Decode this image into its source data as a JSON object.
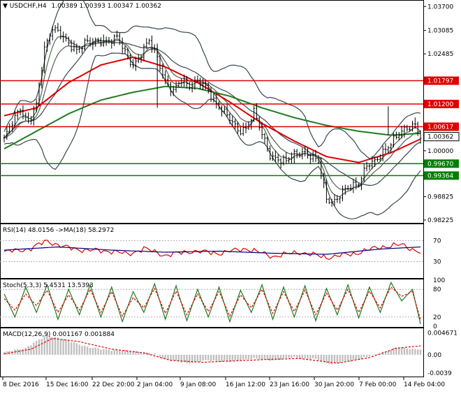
{
  "colors": {
    "candle": "#000000",
    "bollinger": "#36474f",
    "ma_green": "#1f7a1f",
    "ma_red": "#e00000",
    "hline_red": "#e00000",
    "hline_green": "#008000",
    "rsi_main": "#e00000",
    "rsi_ma": "#000080",
    "stoch_main": "#1f7a1f",
    "stoch_signal": "#e00000",
    "macd_hist": "#c0c0c0",
    "macd_signal": "#e00000",
    "price_label_bg": "#e00000",
    "green_label_bg": "#008000"
  },
  "chart_data": [
    {
      "type": "candlestick",
      "pane": "main",
      "title": "USDCHF,H4  1.00389 1.00393 1.00347 1.00362",
      "symbol_header": "USDCHF,H4",
      "ohlc_header": "1.00389 1.00393 1.00347 1.00362",
      "ylim": [
        0.9817,
        1.0383
      ],
      "y_ticks": [
        "1.03700",
        "1.03085",
        "1.02485",
        "1.01797",
        "1.01200",
        "1.00617",
        "1.00362",
        "1.00000",
        "0.99670",
        "0.99364",
        "0.98825",
        "0.98225"
      ],
      "x_ticks": [
        "8 Dec 2016",
        "15 Dec 16:00",
        "22 Dec 20:00",
        "2 Jan 04:00",
        "9 Jan 08:00",
        "16 Jan 12:00",
        "23 Jan 16:00",
        "30 Jan 20:00",
        "7 Feb 00:00",
        "14 Feb 04:00"
      ],
      "close_anchors": [
        [
          0,
          1.003
        ],
        [
          3,
          1.007
        ],
        [
          6,
          1.011
        ],
        [
          9,
          1.0075
        ],
        [
          12,
          1.0115
        ],
        [
          15,
          1.026
        ],
        [
          18,
          1.032
        ],
        [
          21,
          1.03
        ],
        [
          24,
          1.027
        ],
        [
          27,
          1.026
        ],
        [
          30,
          1.028
        ],
        [
          33,
          1.0275
        ],
        [
          36,
          1.028
        ],
        [
          39,
          1.0285
        ],
        [
          42,
          1.029
        ],
        [
          45,
          1.025
        ],
        [
          48,
          1.022
        ],
        [
          51,
          1.025
        ],
        [
          54,
          1.028
        ],
        [
          57,
          1.024
        ],
        [
          60,
          1.018
        ],
        [
          63,
          1.015
        ],
        [
          66,
          1.018
        ],
        [
          69,
          1.017
        ],
        [
          72,
          1.018
        ],
        [
          75,
          1.016
        ],
        [
          78,
          1.013
        ],
        [
          81,
          1.011
        ],
        [
          84,
          1.008
        ],
        [
          87,
          1.005
        ],
        [
          90,
          1.006
        ],
        [
          93,
          1.01
        ],
        [
          96,
          1.004
        ],
        [
          99,
          0.999
        ],
        [
          102,
          0.998
        ],
        [
          105,
          0.997
        ],
        [
          108,
          0.999
        ],
        [
          111,
          1.0
        ],
        [
          114,
          0.9985
        ],
        [
          117,
          0.997
        ],
        [
          120,
          0.988
        ],
        [
          123,
          0.987
        ],
        [
          126,
          0.989
        ],
        [
          129,
          0.991
        ],
        [
          132,
          0.992
        ],
        [
          135,
          0.996
        ],
        [
          138,
          0.997
        ],
        [
          141,
          1.0
        ],
        [
          144,
          1.002
        ],
        [
          147,
          1.004
        ],
        [
          150,
          1.006
        ],
        [
          153,
          1.007
        ],
        [
          155,
          1.0036
        ]
      ],
      "moving_averages": [
        {
          "series_color": "ma_red",
          "anchors": [
            [
              0,
              1.009
            ],
            [
              12,
              1.011
            ],
            [
              24,
              1.0175
            ],
            [
              36,
              1.022
            ],
            [
              48,
              1.024
            ],
            [
              60,
              1.0215
            ],
            [
              72,
              1.0175
            ],
            [
              84,
              1.0125
            ],
            [
              96,
              1.007
            ],
            [
              108,
              1.0025
            ],
            [
              120,
              0.9985
            ],
            [
              132,
              0.997
            ],
            [
              144,
              0.9995
            ],
            [
              155,
              1.003
            ]
          ]
        },
        {
          "series_color": "ma_green",
          "anchors": [
            [
              0,
              1.0005
            ],
            [
              12,
              1.005
            ],
            [
              24,
              1.0095
            ],
            [
              36,
              1.013
            ],
            [
              48,
              1.015
            ],
            [
              60,
              1.0165
            ],
            [
              72,
              1.016
            ],
            [
              84,
              1.014
            ],
            [
              96,
              1.011
            ],
            [
              108,
              1.0085
            ],
            [
              120,
              1.0065
            ],
            [
              132,
              1.005
            ],
            [
              144,
              1.004
            ],
            [
              155,
              1.0045
            ]
          ]
        }
      ],
      "horizontal_levels": [
        {
          "value": 1.01797,
          "label": "1.01797",
          "color": "hline_red"
        },
        {
          "value": 1.012,
          "label": "1.01200",
          "color": "hline_red"
        },
        {
          "value": 1.00617,
          "label": "1.00617",
          "color": "hline_red"
        },
        {
          "value": 0.9967,
          "label": "0.99670",
          "color": "hline_green"
        },
        {
          "value": 0.99364,
          "label": "0.99364",
          "color": "hline_green"
        }
      ],
      "current_price_label": "1.00362"
    },
    {
      "type": "line",
      "pane": "rsi",
      "title": "RSI(14) 48.0156  ->MA(18) 58.2972",
      "ylim": [
        0,
        100
      ],
      "y_ticks": [
        "70",
        "30"
      ],
      "series": [
        {
          "color_key": "rsi_main",
          "anchors": [
            [
              0,
              48
            ],
            [
              10,
              55
            ],
            [
              16,
              70
            ],
            [
              22,
              58
            ],
            [
              30,
              52
            ],
            [
              40,
              50
            ],
            [
              46,
              44
            ],
            [
              52,
              55
            ],
            [
              60,
              42
            ],
            [
              70,
              50
            ],
            [
              80,
              46
            ],
            [
              90,
              55
            ],
            [
              100,
              40
            ],
            [
              110,
              48
            ],
            [
              120,
              38
            ],
            [
              130,
              45
            ],
            [
              140,
              58
            ],
            [
              148,
              62
            ],
            [
              155,
              48
            ]
          ]
        },
        {
          "color_key": "rsi_ma",
          "anchors": [
            [
              0,
              52
            ],
            [
              20,
              58
            ],
            [
              40,
              52
            ],
            [
              60,
              48
            ],
            [
              80,
              50
            ],
            [
              100,
              46
            ],
            [
              120,
              44
            ],
            [
              140,
              54
            ],
            [
              155,
              58
            ]
          ]
        }
      ]
    },
    {
      "type": "line",
      "pane": "stoch",
      "title": "Stoch(5,3,3) 5.4531 13.5393",
      "ylim": [
        0,
        100
      ],
      "y_ticks": [
        "100",
        "80",
        "20",
        "0"
      ],
      "series": [
        {
          "color_key": "stoch_main",
          "anchors": [
            [
              0,
              70
            ],
            [
              4,
              20
            ],
            [
              8,
              85
            ],
            [
              12,
              30
            ],
            [
              16,
              90
            ],
            [
              20,
              15
            ],
            [
              24,
              80
            ],
            [
              28,
              25
            ],
            [
              32,
              90
            ],
            [
              36,
              20
            ],
            [
              40,
              85
            ],
            [
              44,
              10
            ],
            [
              48,
              75
            ],
            [
              52,
              30
            ],
            [
              56,
              92
            ],
            [
              60,
              15
            ],
            [
              64,
              88
            ],
            [
              68,
              12
            ],
            [
              72,
              80
            ],
            [
              76,
              20
            ],
            [
              80,
              85
            ],
            [
              84,
              10
            ],
            [
              88,
              78
            ],
            [
              92,
              30
            ],
            [
              96,
              90
            ],
            [
              100,
              15
            ],
            [
              104,
              85
            ],
            [
              108,
              20
            ],
            [
              112,
              88
            ],
            [
              116,
              12
            ],
            [
              120,
              82
            ],
            [
              124,
              25
            ],
            [
              128,
              90
            ],
            [
              132,
              18
            ],
            [
              136,
              85
            ],
            [
              140,
              30
            ],
            [
              144,
              95
            ],
            [
              148,
              55
            ],
            [
              152,
              80
            ],
            [
              155,
              5
            ]
          ]
        },
        {
          "color_key": "stoch_signal",
          "anchors": [
            [
              0,
              60
            ],
            [
              4,
              35
            ],
            [
              8,
              70
            ],
            [
              12,
              45
            ],
            [
              16,
              78
            ],
            [
              20,
              30
            ],
            [
              24,
              68
            ],
            [
              28,
              35
            ],
            [
              32,
              80
            ],
            [
              36,
              30
            ],
            [
              40,
              75
            ],
            [
              44,
              22
            ],
            [
              48,
              62
            ],
            [
              52,
              40
            ],
            [
              56,
              82
            ],
            [
              60,
              28
            ],
            [
              64,
              76
            ],
            [
              68,
              25
            ],
            [
              72,
              70
            ],
            [
              76,
              32
            ],
            [
              80,
              75
            ],
            [
              84,
              22
            ],
            [
              88,
              68
            ],
            [
              92,
              40
            ],
            [
              96,
              80
            ],
            [
              100,
              28
            ],
            [
              104,
              75
            ],
            [
              108,
              32
            ],
            [
              112,
              78
            ],
            [
              116,
              25
            ],
            [
              120,
              72
            ],
            [
              124,
              35
            ],
            [
              128,
              80
            ],
            [
              132,
              30
            ],
            [
              136,
              76
            ],
            [
              140,
              40
            ],
            [
              144,
              85
            ],
            [
              148,
              65
            ],
            [
              152,
              75
            ],
            [
              155,
              14
            ]
          ]
        }
      ]
    },
    {
      "type": "bar",
      "pane": "macd",
      "title": "MACD(12,26,9) 0.001167 0.001884",
      "ylim": [
        -0.0045,
        0.0055
      ],
      "y_ticks": [
        "0.004671",
        "0.00",
        "-0.0039"
      ],
      "histogram_anchors": [
        [
          0,
          0.0005
        ],
        [
          8,
          0.0015
        ],
        [
          16,
          0.0042
        ],
        [
          24,
          0.003
        ],
        [
          32,
          0.0015
        ],
        [
          40,
          0.001
        ],
        [
          48,
          0.0008
        ],
        [
          56,
          0.0002
        ],
        [
          60,
          -0.001
        ],
        [
          68,
          -0.0018
        ],
        [
          76,
          -0.0012
        ],
        [
          84,
          -0.0015
        ],
        [
          92,
          -0.0008
        ],
        [
          100,
          -0.0012
        ],
        [
          108,
          -0.0006
        ],
        [
          116,
          -0.001
        ],
        [
          122,
          -0.002
        ],
        [
          130,
          -0.0012
        ],
        [
          138,
          0.0
        ],
        [
          146,
          0.0015
        ],
        [
          155,
          0.0012
        ]
      ],
      "signal_anchors": [
        [
          0,
          0.0002
        ],
        [
          10,
          0.0012
        ],
        [
          18,
          0.0035
        ],
        [
          28,
          0.0028
        ],
        [
          40,
          0.0012
        ],
        [
          52,
          0.0004
        ],
        [
          62,
          -0.0012
        ],
        [
          74,
          -0.0016
        ],
        [
          86,
          -0.0013
        ],
        [
          98,
          -0.001
        ],
        [
          110,
          -0.0008
        ],
        [
          124,
          -0.0018
        ],
        [
          136,
          -0.0006
        ],
        [
          146,
          0.0014
        ],
        [
          155,
          0.0019
        ]
      ]
    }
  ]
}
